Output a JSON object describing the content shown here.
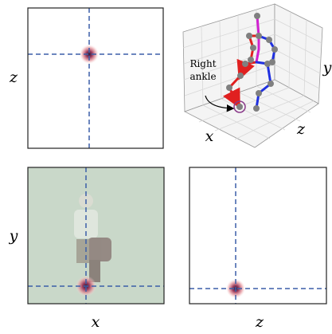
{
  "panels": [
    {
      "ylabel": "z"
    },
    {
      "xlabel": "x",
      "ylabel": "y",
      "zlabel": "z",
      "annotation": [
        "Right",
        "ankle"
      ]
    },
    {
      "xlabel": "x",
      "ylabel": "y"
    },
    {
      "xlabel": "z"
    }
  ]
}
